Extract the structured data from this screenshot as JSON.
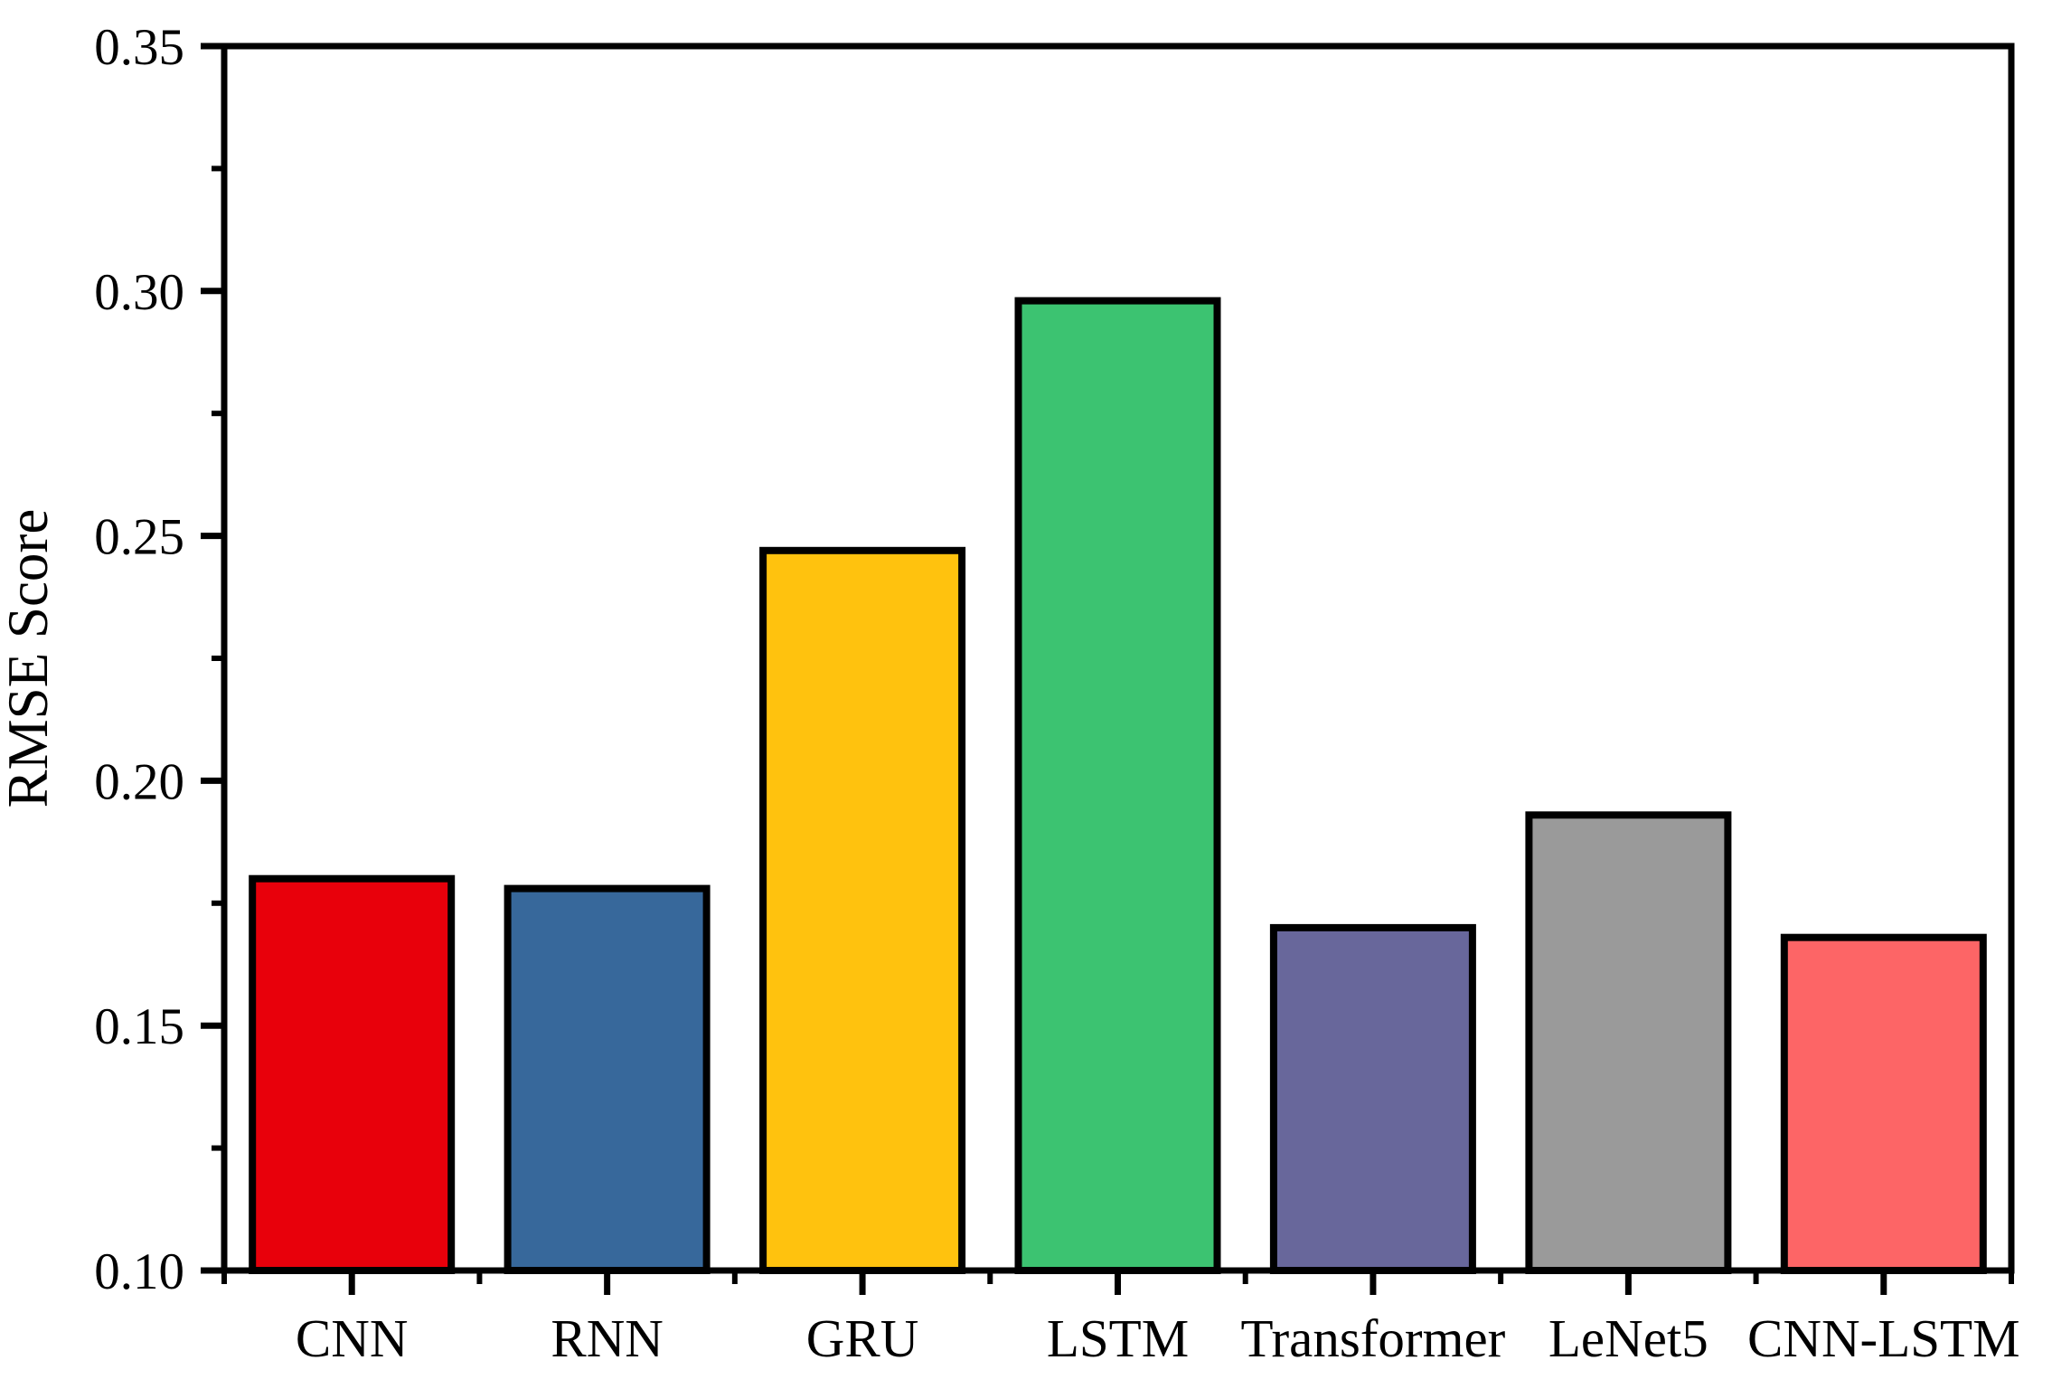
{
  "chart_data": {
    "type": "bar",
    "title": "",
    "xlabel": "",
    "ylabel": "RMSE Score",
    "categories": [
      "CNN",
      "RNN",
      "GRU",
      "LSTM",
      "Transformer",
      "LeNet5",
      "CNN-LSTM"
    ],
    "values": [
      0.18,
      0.178,
      0.247,
      0.298,
      0.17,
      0.193,
      0.168
    ],
    "bar_colors": [
      "#E8000B",
      "#37689B",
      "#FFC20E",
      "#3CC371",
      "#68679B",
      "#9A9A9A",
      "#FD6566"
    ],
    "bar_edge_color": "#000000",
    "axis_color": "#000000",
    "background_color": "#FFFFFF",
    "ylim": [
      0.1,
      0.35
    ],
    "y_major_ticks": [
      0.1,
      0.15,
      0.2,
      0.25,
      0.3,
      0.35
    ],
    "y_tick_labels": [
      "0.10",
      "0.15",
      "0.20",
      "0.25",
      "0.30",
      "0.35"
    ],
    "y_minor_ticks": [
      0.125,
      0.175,
      0.225,
      0.275,
      0.325
    ],
    "grid": false,
    "legend": null,
    "frame": "box",
    "tick_direction": "out"
  }
}
